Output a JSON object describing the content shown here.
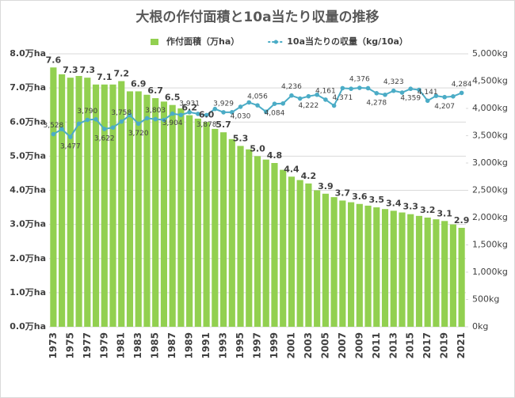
{
  "chart_data": {
    "type": "bar-line",
    "title": "大根の作付面積と10a当たり収量の推移",
    "categories": [
      "1973",
      null,
      "1975",
      null,
      "1977",
      null,
      "1979",
      null,
      "1981",
      null,
      "1983",
      null,
      "1985",
      null,
      "1987",
      null,
      "1989",
      null,
      "1991",
      null,
      "1993",
      null,
      "1995",
      null,
      "1997",
      null,
      "1999",
      null,
      "2001",
      null,
      "2003",
      null,
      "2005",
      null,
      "2007",
      null,
      "2009",
      null,
      "2011",
      null,
      "2013",
      null,
      "2015",
      null,
      "2017",
      null,
      "2019",
      null,
      "2021"
    ],
    "series": [
      {
        "name": "作付面積（万ha）",
        "type": "bar",
        "color": "#92d050",
        "values": [
          7.6,
          7.4,
          7.3,
          7.35,
          7.3,
          7.1,
          7.1,
          7.1,
          7.2,
          6.9,
          6.9,
          6.8,
          6.7,
          6.6,
          6.5,
          6.4,
          6.2,
          6.1,
          6.0,
          5.8,
          5.7,
          5.5,
          5.3,
          5.2,
          5.0,
          4.9,
          4.8,
          4.6,
          4.4,
          4.3,
          4.2,
          4.0,
          3.9,
          3.8,
          3.7,
          3.65,
          3.6,
          3.55,
          3.5,
          3.45,
          3.4,
          3.35,
          3.3,
          3.25,
          3.2,
          3.15,
          3.1,
          3.0,
          2.9
        ],
        "value_labels": [
          "7.6",
          null,
          "7.3",
          null,
          "7.3",
          null,
          "7.1",
          null,
          "7.2",
          null,
          "6.9",
          null,
          "6.7",
          null,
          "6.5",
          null,
          "6.2",
          null,
          "6.0",
          null,
          "5.7",
          null,
          "5.3",
          null,
          "5.0",
          null,
          "4.8",
          null,
          "4.4",
          null,
          "4.2",
          null,
          "3.9",
          null,
          "3.7",
          null,
          "3.6",
          null,
          "3.5",
          null,
          "3.4",
          null,
          "3.3",
          null,
          "3.2",
          null,
          "3.1",
          null,
          "2.9"
        ]
      },
      {
        "name": "10a当たりの収量（kg/10a）",
        "type": "line",
        "axis": "y2",
        "color": "#4bacc6",
        "values": [
          3528,
          3620,
          3477,
          3720,
          3790,
          3800,
          3622,
          3650,
          3758,
          3876,
          3720,
          3820,
          3803,
          3790,
          3904,
          3880,
          3931,
          3900,
          3878,
          3990,
          3929,
          3930,
          4030,
          4110,
          4056,
          3940,
          4084,
          4090,
          4236,
          4180,
          4222,
          4250,
          4161,
          4050,
          4371,
          4360,
          4376,
          4370,
          4278,
          4250,
          4323,
          4290,
          4359,
          4340,
          4141,
          4230,
          4207,
          4220,
          4284
        ],
        "value_labels": [
          "3,528",
          null,
          "3,477",
          null,
          "3,790",
          null,
          "3,622",
          null,
          "3,758",
          null,
          "3,720",
          null,
          "3,803",
          null,
          "3,904",
          null,
          "3,931",
          null,
          "3,878",
          null,
          "3,929",
          null,
          "4,030",
          null,
          "4,056",
          null,
          "4,084",
          null,
          "4,236",
          null,
          "4,222",
          null,
          "4,161",
          null,
          "4,371",
          null,
          "4,376",
          null,
          "4,278",
          null,
          "4,323",
          null,
          "4,359",
          null,
          "4,141",
          null,
          "4,207",
          null,
          "4,284"
        ]
      }
    ],
    "ylim": [
      0,
      8
    ],
    "yticks": [
      {
        "value": 0,
        "label": "0.0万ha"
      },
      {
        "value": 1,
        "label": "1.0万ha"
      },
      {
        "value": 2,
        "label": "2.0万ha"
      },
      {
        "value": 3,
        "label": "3.0万ha"
      },
      {
        "value": 4,
        "label": "4.0万ha"
      },
      {
        "value": 5,
        "label": "5.0万ha"
      },
      {
        "value": 6,
        "label": "6.0万ha"
      },
      {
        "value": 7,
        "label": "7.0万ha"
      },
      {
        "value": 8,
        "label": "8.0万ha"
      }
    ],
    "y2lim": [
      0,
      5000
    ],
    "y2ticks": [
      {
        "value": 0,
        "label": "0kg"
      },
      {
        "value": 500,
        "label": "500kg"
      },
      {
        "value": 1000,
        "label": "1,000kg"
      },
      {
        "value": 1500,
        "label": "1,500kg"
      },
      {
        "value": 2000,
        "label": "2,000kg"
      },
      {
        "value": 2500,
        "label": "2,500kg"
      },
      {
        "value": 3000,
        "label": "3,000kg"
      },
      {
        "value": 3500,
        "label": "3,500kg"
      },
      {
        "value": 4000,
        "label": "4,000kg"
      },
      {
        "value": 4500,
        "label": "4,500kg"
      },
      {
        "value": 5000,
        "label": "5,000kg"
      }
    ],
    "grid": true
  }
}
